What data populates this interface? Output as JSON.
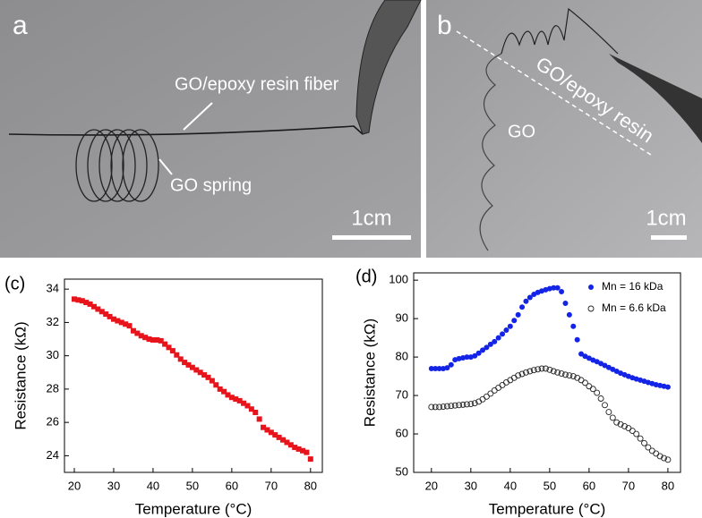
{
  "photos": [
    {
      "label": "a",
      "texts": [
        "GO/epoxy resin fiber",
        "GO spring"
      ],
      "scale_bar": "1cm"
    },
    {
      "label": "b",
      "texts": [
        "GO",
        "GO/epoxy resin"
      ],
      "scale_bar": "1cm"
    }
  ],
  "chart_data": [
    {
      "type": "scatter",
      "panel": "(c)",
      "x_label": "Temperature (°C)",
      "y_label": "Resistance (kΩ)",
      "xlim": [
        17.5,
        83
      ],
      "ylim": [
        23,
        34.6
      ],
      "xticks": [
        20,
        30,
        40,
        50,
        60,
        70,
        80
      ],
      "yticks": [
        24,
        26,
        28,
        30,
        32,
        34
      ],
      "x": [
        20,
        21,
        22,
        23,
        24,
        25,
        26,
        27,
        28,
        29,
        30,
        31,
        32,
        33,
        34,
        35,
        36,
        37,
        38,
        39,
        40,
        41,
        42,
        43,
        44,
        45,
        46,
        47,
        48,
        49,
        50,
        51,
        52,
        53,
        54,
        55,
        56,
        57,
        58,
        59,
        60,
        61,
        62,
        63,
        64,
        65,
        66,
        67,
        68,
        69,
        70,
        71,
        72,
        73,
        74,
        75,
        76,
        77,
        78,
        79,
        80
      ],
      "series": [
        {
          "color": "#e8141b",
          "marker": "square",
          "values": [
            33.4,
            33.35,
            33.3,
            33.2,
            33.1,
            32.95,
            32.8,
            32.65,
            32.5,
            32.35,
            32.2,
            32.1,
            32.0,
            31.9,
            31.8,
            31.5,
            31.35,
            31.2,
            31.1,
            31.0,
            30.95,
            30.95,
            30.9,
            30.7,
            30.5,
            30.3,
            30.05,
            29.8,
            29.6,
            29.45,
            29.3,
            29.15,
            29.0,
            28.85,
            28.7,
            28.5,
            28.25,
            28.0,
            27.85,
            27.65,
            27.5,
            27.4,
            27.3,
            27.15,
            27.0,
            26.8,
            26.6,
            26.2,
            25.7,
            25.55,
            25.4,
            25.25,
            25.1,
            24.95,
            24.8,
            24.65,
            24.5,
            24.4,
            24.3,
            24.2,
            23.8
          ]
        }
      ]
    },
    {
      "type": "scatter",
      "panel": "(d)",
      "x_label": "Temperature (°C)",
      "y_label": "Resistance (kΩ)",
      "xlim": [
        15.5,
        83.2
      ],
      "ylim": [
        50,
        101.9
      ],
      "xticks": [
        20,
        30,
        40,
        50,
        60,
        70,
        80
      ],
      "yticks": [
        50,
        60,
        70,
        80,
        90,
        100
      ],
      "x": [
        20,
        21,
        22,
        23,
        24,
        25,
        26,
        27,
        28,
        29,
        30,
        31,
        32,
        33,
        34,
        35,
        36,
        37,
        38,
        39,
        40,
        41,
        42,
        43,
        44,
        45,
        46,
        47,
        48,
        49,
        50,
        51,
        52,
        53,
        54,
        55,
        56,
        57,
        58,
        59,
        60,
        61,
        62,
        63,
        64,
        65,
        66,
        67,
        68,
        69,
        70,
        71,
        72,
        73,
        74,
        75,
        76,
        77,
        78,
        79,
        80
      ],
      "series": [
        {
          "name": "Mn = 16 kDa",
          "color": "#1424e6",
          "marker": "circle",
          "values": [
            77,
            77,
            77,
            77,
            77.2,
            78,
            79.3,
            79.6,
            79.8,
            80,
            80,
            80.3,
            81,
            81.8,
            82.5,
            83.3,
            84,
            85,
            86,
            87,
            88,
            89.5,
            91,
            93,
            94.5,
            95.5,
            96.3,
            96.8,
            97.2,
            97.5,
            97.8,
            98,
            98,
            97,
            94,
            91,
            88,
            84.5,
            80.8,
            80.2,
            79.7,
            79.2,
            78.8,
            78.3,
            77.8,
            77.3,
            76.8,
            76.3,
            75.8,
            75.4,
            75,
            74.6,
            74.3,
            74,
            73.7,
            73.4,
            73.1,
            72.8,
            72.6,
            72.4,
            72.2
          ]
        },
        {
          "name": "Mn = 6.6 kDa",
          "color": "#222222",
          "marker": "open-circle",
          "values": [
            67,
            67,
            67,
            67.1,
            67.2,
            67.3,
            67.4,
            67.5,
            67.6,
            67.7,
            67.8,
            68,
            68.4,
            69,
            69.7,
            70.5,
            71.3,
            72,
            72.7,
            73.4,
            74,
            74.6,
            75.2,
            75.6,
            76,
            76.3,
            76.6,
            76.8,
            77,
            77,
            76.7,
            76.3,
            76,
            75.7,
            75.4,
            75.2,
            75,
            74.6,
            74,
            73.3,
            72.4,
            71.7,
            70.7,
            69.2,
            67.5,
            65.7,
            64.2,
            63,
            62.5,
            62,
            61.5,
            60.8,
            60,
            58.8,
            57.6,
            56.5,
            55.6,
            54.9,
            54.2,
            53.7,
            53.3
          ]
        }
      ]
    }
  ]
}
